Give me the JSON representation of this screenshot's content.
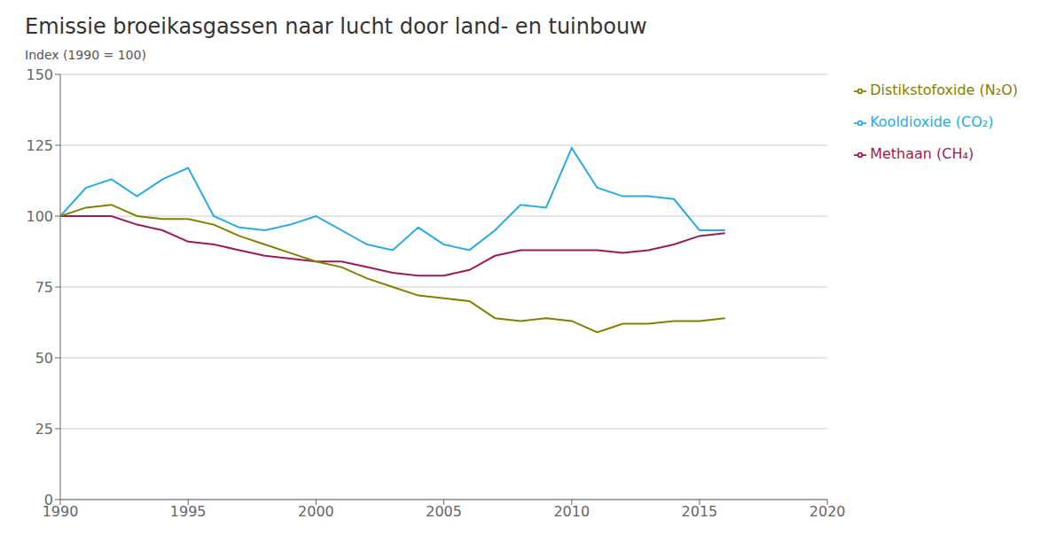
{
  "chart_data": {
    "type": "line",
    "title": "Emissie broeikasgassen naar lucht door land- en tuinbouw",
    "y_label": "Index (1990 = 100)",
    "x": [
      1990,
      1991,
      1992,
      1993,
      1994,
      1995,
      1996,
      1997,
      1998,
      1999,
      2000,
      2001,
      2002,
      2003,
      2004,
      2005,
      2006,
      2007,
      2008,
      2009,
      2010,
      2011,
      2012,
      2013,
      2014,
      2015,
      2016
    ],
    "series": [
      {
        "name": "Kooldioxide (CO₂)",
        "color": "#29ABE2",
        "values": [
          100,
          110,
          113,
          107,
          113,
          117,
          100,
          96,
          95,
          97,
          100,
          95,
          90,
          88,
          96,
          90,
          88,
          95,
          104,
          103,
          124,
          110,
          107,
          107,
          106,
          95,
          95
        ]
      },
      {
        "name": "Methaan (CH₄)",
        "color": "#9B1B5A",
        "values": [
          100,
          100,
          100,
          97,
          95,
          91,
          90,
          88,
          86,
          85,
          84,
          84,
          82,
          80,
          79,
          79,
          81,
          86,
          88,
          88,
          88,
          88,
          87,
          88,
          90,
          93,
          94
        ]
      },
      {
        "name": "Distikstofoxide (N₂O)",
        "color": "#808000",
        "values": [
          100,
          103,
          104,
          100,
          99,
          99,
          97,
          93,
          90,
          87,
          84,
          82,
          78,
          75,
          72,
          71,
          70,
          64,
          63,
          64,
          63,
          59,
          62,
          62,
          63,
          63,
          64
        ]
      }
    ],
    "xlim": [
      1990,
      2020
    ],
    "ylim": [
      0,
      150
    ],
    "xticks": [
      1990,
      1995,
      2000,
      2005,
      2010,
      2015,
      2020
    ],
    "yticks": [
      0,
      25,
      50,
      75,
      100,
      125,
      150
    ],
    "grid": true,
    "legend": "right"
  }
}
